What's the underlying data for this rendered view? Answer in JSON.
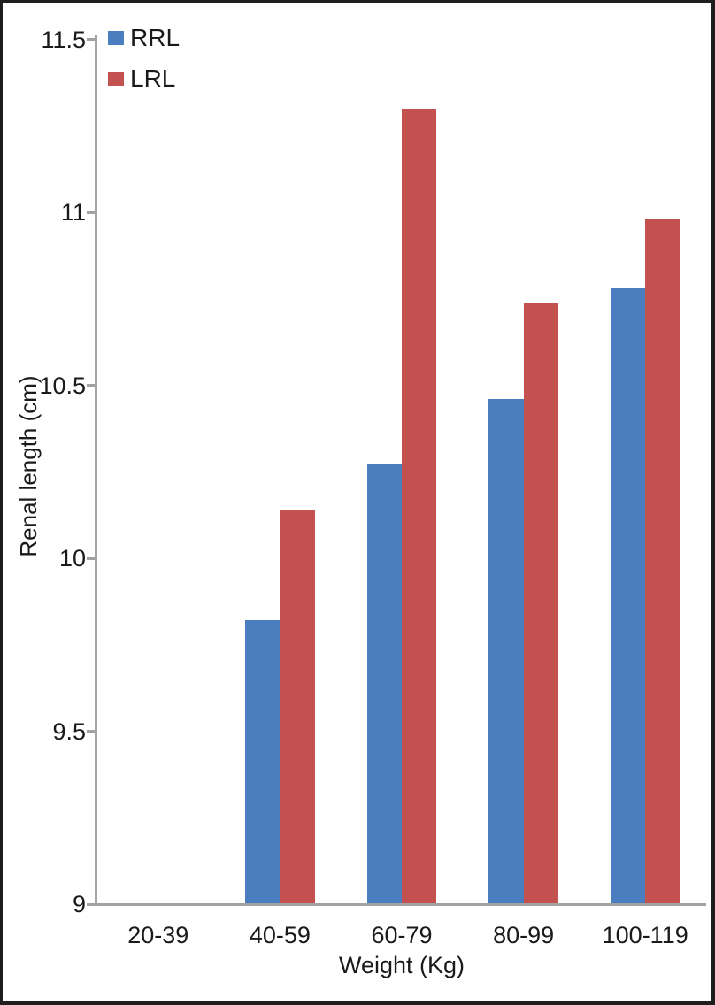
{
  "chart_data": {
    "type": "bar",
    "title": "",
    "xlabel": "Weight (Kg)",
    "ylabel": "Renal length (cm)",
    "categories": [
      "20-39",
      "40-59",
      "60-79",
      "80-99",
      "100-119"
    ],
    "series": [
      {
        "name": "RRL",
        "color": "#4A7EBF",
        "values": [
          null,
          9.82,
          10.27,
          10.46,
          10.78
        ]
      },
      {
        "name": "LRL",
        "color": "#C35150",
        "values": [
          null,
          10.14,
          11.3,
          10.74,
          10.98
        ]
      }
    ],
    "ylim": [
      9,
      11.5
    ],
    "yticks": [
      9,
      9.5,
      10,
      10.5,
      11,
      11.5
    ],
    "ytick_step": 0.5,
    "grid": false,
    "legend_position": "top-left",
    "axis_color": "#A3A3A3",
    "text_color": "#1A1A1A",
    "frame_color": "#1E1E1E"
  }
}
